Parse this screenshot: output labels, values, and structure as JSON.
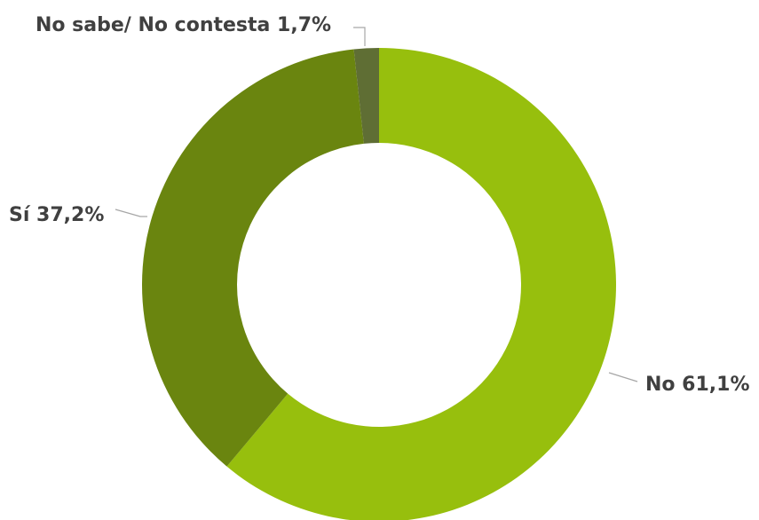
{
  "chart_data": {
    "type": "pie",
    "donut": true,
    "title": "",
    "categories": [
      "No",
      "Sí",
      "No sabe/ No contesta"
    ],
    "values": [
      61.1,
      37.2,
      1.7
    ],
    "colors": [
      "#97bf0d",
      "#6a850f",
      "#5f6e34"
    ],
    "labels": [
      "No 61,1%",
      "Sí 37,2%",
      "No sabe/ No contesta 1,7%"
    ],
    "legend": "none",
    "start": "top",
    "direction": "clockwise"
  }
}
